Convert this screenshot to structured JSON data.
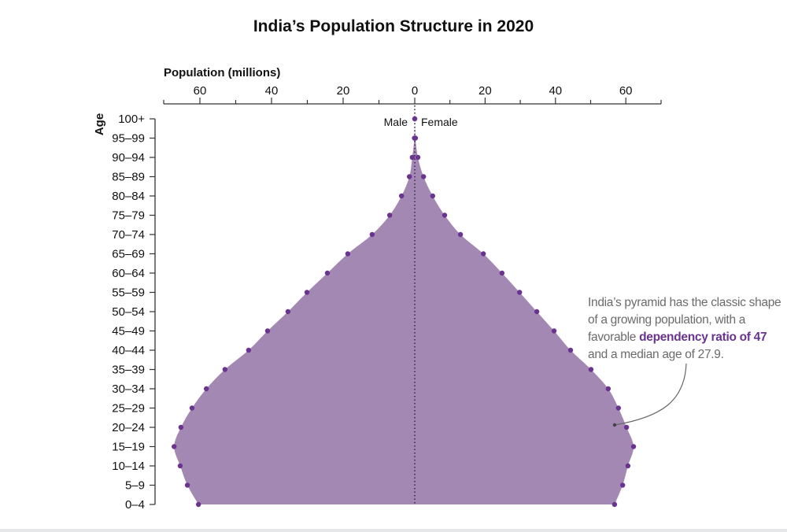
{
  "title": "India’s Population Structure in 2020",
  "chart_data": {
    "type": "area",
    "subtype": "population-pyramid",
    "title": "India’s Population Structure in 2020",
    "xlabel": "Population (millions)",
    "ylabel": "Age",
    "x_ticks_left": [
      "60",
      "40",
      "20",
      "0"
    ],
    "x_ticks_right": [
      "20",
      "40",
      "60"
    ],
    "xlim_left": [
      0,
      70
    ],
    "xlim_right": [
      0,
      70
    ],
    "grid": false,
    "legend": [
      "Male",
      "Female"
    ],
    "categories": [
      "0–4",
      "5–9",
      "10–14",
      "15–19",
      "20–24",
      "25–29",
      "30–34",
      "35–39",
      "40–44",
      "45–49",
      "50–54",
      "55–59",
      "60–64",
      "65–69",
      "70–74",
      "75–79",
      "80–84",
      "85–89",
      "90–94",
      "95–99",
      "100+"
    ],
    "series": [
      {
        "name": "Male",
        "values": [
          60.4,
          63.5,
          65.5,
          67.2,
          65.3,
          62.2,
          58.2,
          53.0,
          46.4,
          41.1,
          35.4,
          30.1,
          24.4,
          18.7,
          11.9,
          7.0,
          3.7,
          1.5,
          0.7,
          0.1,
          0.0
        ]
      },
      {
        "name": "Female",
        "values": [
          56.8,
          59.1,
          60.6,
          62.2,
          60.2,
          57.9,
          55.0,
          50.1,
          44.3,
          39.6,
          34.7,
          29.8,
          24.8,
          19.5,
          13.0,
          8.5,
          5.1,
          2.5,
          0.9,
          0.2,
          0.0
        ]
      }
    ],
    "colors": {
      "fill": "#a488b4",
      "dot": "#6a3390",
      "axis": "#333333",
      "annotation_text": "#6b6b6b",
      "highlight": "#6a3390"
    },
    "annotation": {
      "text_before": "India’s pyramid has the classic shape of a growing population, with a favorable ",
      "highlight": "dependency ratio of 47",
      "text_after": " and a median age of 27.9.",
      "points_to": "Female 20–24"
    }
  },
  "labels": {
    "x_axis_title": "Population (millions)",
    "y_axis_title": "Age",
    "male": "Male",
    "female": "Female"
  }
}
